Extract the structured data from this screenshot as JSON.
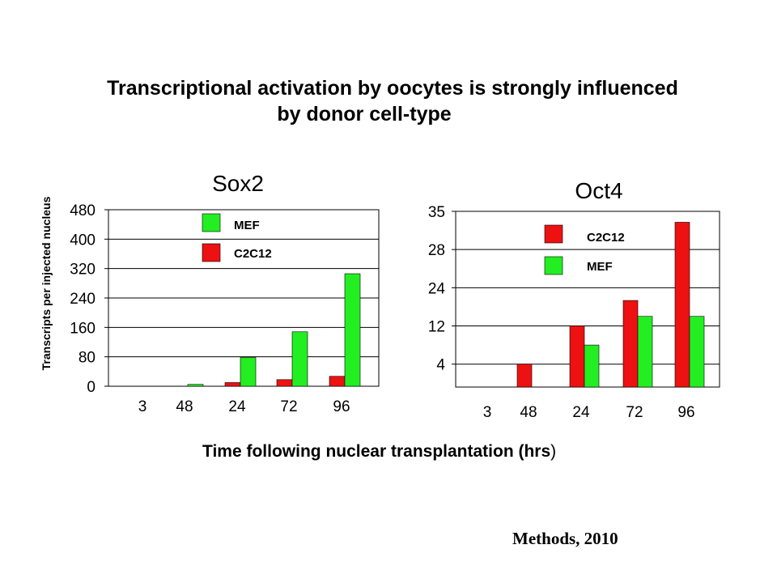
{
  "slide": {
    "title_line1": "Transcriptional activation by oocytes is strongly influenced",
    "title_line2": "by donor cell-type",
    "shared_ylabel": "Transcripts per injected nucleus",
    "shared_xlabel": "Time following nuclear transplantation (hrs",
    "shared_xlabel_close": ")",
    "citation": "Methods, 2010"
  },
  "colors": {
    "MEF": "#22ee22",
    "C2C12": "#ee1111"
  },
  "chart_data": [
    {
      "type": "bar",
      "title": "Sox2",
      "categories": [
        "3",
        "48",
        "24",
        "72",
        "96"
      ],
      "yticks": [
        0,
        80,
        160,
        240,
        320,
        400,
        480
      ],
      "ylim": [
        0,
        480
      ],
      "grid": true,
      "legend_order": [
        "MEF",
        "C2C12"
      ],
      "series": [
        {
          "name": "C2C12",
          "values": [
            0,
            0,
            10,
            18,
            27
          ]
        },
        {
          "name": "MEF",
          "values": [
            0,
            5,
            78,
            148,
            306
          ]
        }
      ]
    },
    {
      "type": "bar",
      "title": "Oct4",
      "categories": [
        "3",
        "48",
        "24",
        "72",
        "96"
      ],
      "yticks": [
        4,
        12,
        24,
        28,
        35
      ],
      "ylim": [
        0,
        35
      ],
      "grid": true,
      "legend_order": [
        "C2C12",
        "MEF"
      ],
      "series": [
        {
          "name": "C2C12",
          "values": [
            0,
            4,
            12,
            20,
            33
          ]
        },
        {
          "name": "MEF",
          "values": [
            0,
            0,
            8,
            15,
            15
          ]
        }
      ]
    }
  ]
}
